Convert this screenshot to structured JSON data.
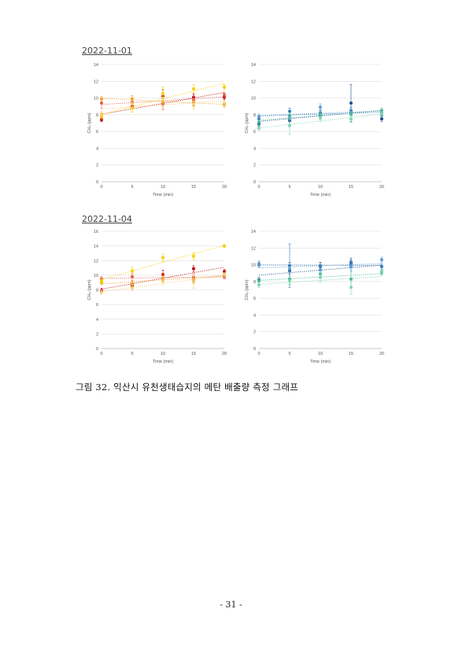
{
  "sections": [
    {
      "date": "2022-11-01"
    },
    {
      "date": "2022-11-04"
    }
  ],
  "caption": "그림 32. 익산시 유천생태습지의 메탄 배출량 측정 그래프",
  "page_number": "- 31 -",
  "chart_data": [
    {
      "type": "scatter",
      "xlabel": "Time (min)",
      "ylabel": "CH₄ (ppm)",
      "xlim": [
        0,
        20
      ],
      "ylim": [
        0,
        14
      ],
      "yticks": [
        0,
        2,
        4,
        6,
        8,
        10,
        12,
        14
      ],
      "xticks": [
        0,
        5,
        10,
        15,
        20
      ],
      "grid": true,
      "series": [
        {
          "color": "#c00000",
          "x": [
            0,
            5,
            10,
            15,
            20
          ],
          "y": [
            7.4,
            9.0,
            10.2,
            10.1,
            10.1
          ],
          "err": [
            0.2,
            0.3,
            0.8,
            0.4,
            0.3
          ]
        },
        {
          "color": "#e8594f",
          "x": [
            0,
            5,
            10,
            15,
            20
          ],
          "y": [
            9.4,
            9.5,
            9.3,
            9.8,
            10.4
          ],
          "err": [
            0.6,
            0.3,
            0.7,
            0.4,
            0.3
          ]
        },
        {
          "color": "#f0a030",
          "x": [
            0,
            5,
            10,
            15,
            20
          ],
          "y": [
            9.9,
            9.9,
            9.5,
            9.5,
            9.2
          ],
          "err": [
            0.3,
            0.4,
            0.5,
            0.4,
            0.3
          ]
        },
        {
          "color": "#f6d000",
          "x": [
            0,
            5,
            10,
            15,
            20
          ],
          "y": [
            7.8,
            8.8,
            10.5,
            11.1,
            11.3
          ],
          "err": [
            0.3,
            0.5,
            0.8,
            0.5,
            0.3
          ]
        },
        {
          "color": "#f4c96b",
          "x": [
            0,
            5,
            10,
            15,
            20
          ],
          "y": [
            8.1,
            9.3,
            10.0,
            9.1,
            9.4
          ],
          "err": [
            0.3,
            0.4,
            0.5,
            0.4,
            0.3
          ]
        }
      ]
    },
    {
      "type": "scatter",
      "xlabel": "Time (min)",
      "ylabel": "CH₄ (ppm)",
      "xlim": [
        0,
        20
      ],
      "ylim": [
        0,
        14
      ],
      "yticks": [
        0,
        2,
        4,
        6,
        8,
        10,
        12,
        14
      ],
      "xticks": [
        0,
        5,
        10,
        15,
        20
      ],
      "grid": true,
      "series": [
        {
          "color": "#1f4e8c",
          "x": [
            0,
            5,
            10,
            15,
            20
          ],
          "y": [
            6.9,
            7.3,
            8.2,
            9.4,
            7.5
          ],
          "err": [
            0.3,
            0.5,
            0.4,
            2.2,
            0.3
          ]
        },
        {
          "color": "#2e75b6",
          "x": [
            0,
            5,
            10,
            15,
            20
          ],
          "y": [
            7.5,
            8.4,
            8.0,
            8.5,
            8.0
          ],
          "err": [
            0.3,
            0.4,
            0.3,
            0.4,
            0.3
          ]
        },
        {
          "color": "#5b9bd5",
          "x": [
            0,
            5,
            10,
            15,
            20
          ],
          "y": [
            7.8,
            7.7,
            8.9,
            8.3,
            8.2
          ],
          "err": [
            0.3,
            0.3,
            0.4,
            0.3,
            0.3
          ]
        },
        {
          "color": "#47b39c",
          "x": [
            0,
            5,
            10,
            15,
            20
          ],
          "y": [
            7.1,
            7.9,
            8.1,
            8.0,
            8.5
          ],
          "err": [
            0.3,
            0.4,
            0.3,
            0.4,
            0.3
          ]
        },
        {
          "color": "#7fd6b2",
          "x": [
            0,
            5,
            10,
            15,
            20
          ],
          "y": [
            6.4,
            6.7,
            7.6,
            7.5,
            8.1
          ],
          "err": [
            0.3,
            1.0,
            0.4,
            0.4,
            0.3
          ]
        }
      ]
    },
    {
      "type": "scatter",
      "xlabel": "Time (min)",
      "ylabel": "CH₄ (ppm)",
      "xlim": [
        0,
        20
      ],
      "ylim": [
        0,
        16
      ],
      "yticks": [
        0,
        2,
        4,
        6,
        8,
        10,
        12,
        14,
        16
      ],
      "xticks": [
        0,
        5,
        10,
        15,
        20
      ],
      "grid": true,
      "series": [
        {
          "color": "#c00000",
          "x": [
            0,
            5,
            10,
            15,
            20
          ],
          "y": [
            7.9,
            8.6,
            10.1,
            10.9,
            10.5
          ],
          "err": [
            0.3,
            0.4,
            0.6,
            0.4,
            0.3
          ]
        },
        {
          "color": "#e8594f",
          "x": [
            0,
            5,
            10,
            15,
            20
          ],
          "y": [
            9.5,
            9.8,
            9.6,
            9.7,
            9.8
          ],
          "err": [
            0.3,
            0.5,
            0.4,
            0.5,
            0.3
          ]
        },
        {
          "color": "#f0a030",
          "x": [
            0,
            5,
            10,
            15,
            20
          ],
          "y": [
            9.0,
            8.8,
            9.6,
            9.4,
            10.1
          ],
          "err": [
            0.3,
            0.4,
            0.5,
            0.5,
            0.3
          ]
        },
        {
          "color": "#f6d000",
          "x": [
            0,
            5,
            10,
            15,
            20
          ],
          "y": [
            9.2,
            10.6,
            12.4,
            12.6,
            14.0
          ],
          "err": [
            0.3,
            0.5,
            0.5,
            0.5,
            0.2
          ]
        },
        {
          "color": "#f4c96b",
          "x": [
            0,
            5,
            10,
            15,
            20
          ],
          "y": [
            7.7,
            8.3,
            9.2,
            9.1,
            10.1
          ],
          "err": [
            0.3,
            0.4,
            0.6,
            0.9,
            0.3
          ]
        }
      ]
    },
    {
      "type": "scatter",
      "xlabel": "Time (min)",
      "ylabel": "CH₄ (ppm)",
      "xlim": [
        0,
        20
      ],
      "ylim": [
        0,
        14
      ],
      "yticks": [
        0,
        2,
        4,
        6,
        8,
        10,
        12,
        14
      ],
      "xticks": [
        0,
        5,
        10,
        15,
        20
      ],
      "grid": true,
      "series": [
        {
          "color": "#1f4e8c",
          "x": [
            0,
            5,
            10,
            15,
            20
          ],
          "y": [
            8.2,
            9.3,
            9.8,
            10.3,
            9.2
          ],
          "err": [
            0.3,
            1.0,
            0.5,
            0.5,
            0.3
          ]
        },
        {
          "color": "#2e75b6",
          "x": [
            0,
            5,
            10,
            15,
            20
          ],
          "y": [
            10.0,
            9.9,
            9.9,
            10.1,
            9.8
          ],
          "err": [
            0.3,
            2.6,
            0.4,
            0.5,
            0.3
          ]
        },
        {
          "color": "#5b9bd5",
          "x": [
            0,
            5,
            10,
            15,
            20
          ],
          "y": [
            10.1,
            9.5,
            9.4,
            9.8,
            10.6
          ],
          "err": [
            0.4,
            0.5,
            0.6,
            0.6,
            0.3
          ]
        },
        {
          "color": "#47b39c",
          "x": [
            0,
            5,
            10,
            15,
            20
          ],
          "y": [
            8.1,
            8.3,
            8.9,
            8.3,
            9.1
          ],
          "err": [
            0.4,
            0.6,
            0.5,
            1.1,
            0.3
          ]
        },
        {
          "color": "#7fd6b2",
          "x": [
            0,
            5,
            10,
            15,
            20
          ],
          "y": [
            7.6,
            8.1,
            8.5,
            7.3,
            9.2
          ],
          "err": [
            0.3,
            0.5,
            0.6,
            0.8,
            0.3
          ]
        }
      ]
    }
  ]
}
